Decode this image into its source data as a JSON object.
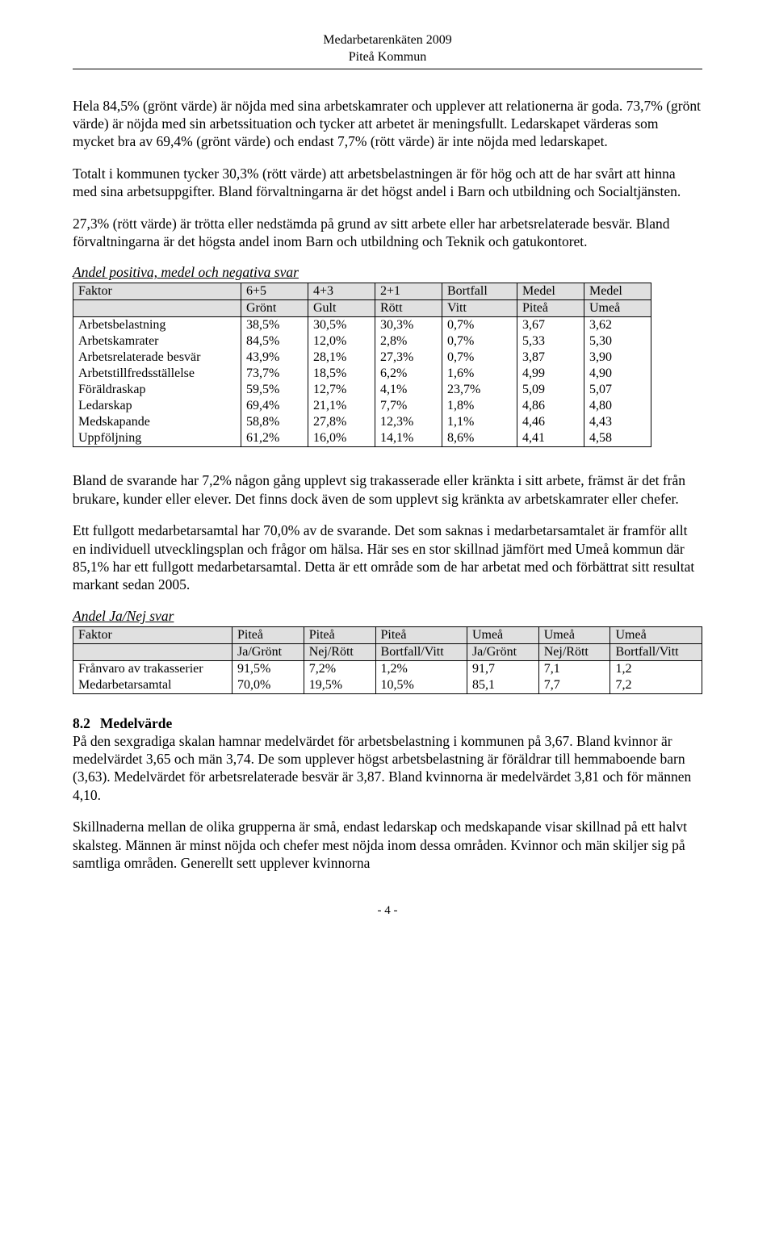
{
  "header": {
    "line1": "Medarbetarenkäten 2009",
    "line2": "Piteå Kommun"
  },
  "paragraphs": {
    "p1": "Hela 84,5% (grönt värde) är nöjda med sina arbetskamrater och upplever att relationerna är goda. 73,7% (grönt värde) är nöjda med sin arbetssituation och tycker att arbetet är meningsfullt. Ledarskapet värderas som mycket bra av 69,4% (grönt värde) och endast 7,7% (rött värde) är inte nöjda med ledarskapet.",
    "p2": "Totalt i kommunen tycker 30,3% (rött värde) att arbetsbelastningen är för hög och att de har svårt att hinna med sina arbetsuppgifter. Bland förvaltningarna är det högst andel i Barn och utbildning och Socialtjänsten.",
    "p3": "27,3% (rött värde) är trötta eller nedstämda på grund av sitt arbete eller har arbetsrelaterade besvär. Bland förvaltningarna är det högsta andel inom Barn och utbildning och Teknik och gatukontoret.",
    "p4": "Bland de svarande har 7,2% någon gång upplevt sig trakasserade eller kränkta i sitt arbete, främst är det från brukare, kunder eller elever. Det finns dock även de som upplevt sig kränkta av arbetskamrater eller chefer.",
    "p5": "Ett fullgott medarbetarsamtal har 70,0% av de svarande. Det som saknas i medarbetarsamtalet är framför allt en individuell utvecklingsplan och frågor om hälsa. Här ses en stor skillnad jämfört med Umeå kommun där 85,1% har ett fullgott medarbetarsamtal. Detta är ett område som de har arbetat med och förbättrat sitt resultat markant sedan 2005.",
    "p6": "På den sexgradiga skalan hamnar medelvärdet för arbetsbelastning i kommunen på 3,67. Bland kvinnor är medelvärdet 3,65 och män 3,74. De som upplever högst arbetsbelastning är föräldrar till hemmaboende barn (3,63). Medelvärdet för arbetsrelaterade besvär är 3,87. Bland kvinnorna är medelvärdet 3,81 och för männen 4,10.",
    "p7": "Skillnaderna mellan de olika grupperna är små, endast ledarskap och medskapande visar skillnad på ett halvt skalsteg. Männen är minst nöjda och chefer mest nöjda inom dessa områden. Kvinnor och män skiljer sig på samtliga områden. Generellt sett upplever kvinnorna"
  },
  "table1": {
    "caption": "Andel positiva, medel och negativa svar",
    "head1": [
      "Faktor",
      "6+5",
      "4+3",
      "2+1",
      "Bortfall",
      "Medel",
      "Medel"
    ],
    "head2": [
      "",
      "Grönt",
      "Gult",
      "Rött",
      "Vitt",
      "Piteå",
      "Umeå"
    ],
    "rows": [
      [
        "Arbetsbelastning",
        "38,5%",
        "30,5%",
        "30,3%",
        "0,7%",
        "3,67",
        "3,62"
      ],
      [
        "Arbetskamrater",
        "84,5%",
        "12,0%",
        "2,8%",
        "0,7%",
        "5,33",
        "5,30"
      ],
      [
        "Arbetsrelaterade besvär",
        "43,9%",
        "28,1%",
        "27,3%",
        "0,7%",
        "3,87",
        "3,90"
      ],
      [
        "Arbetstillfredsställelse",
        "73,7%",
        "18,5%",
        "6,2%",
        "1,6%",
        "4,99",
        "4,90"
      ],
      [
        "Föräldraskap",
        "59,5%",
        "12,7%",
        "4,1%",
        "23,7%",
        "5,09",
        "5,07"
      ],
      [
        "Ledarskap",
        "69,4%",
        "21,1%",
        "7,7%",
        "1,8%",
        "4,86",
        "4,80"
      ],
      [
        "Medskapande",
        "58,8%",
        "27,8%",
        "12,3%",
        "1,1%",
        "4,46",
        "4,43"
      ],
      [
        "Uppföljning",
        "61,2%",
        "16,0%",
        "14,1%",
        "8,6%",
        "4,41",
        "4,58"
      ]
    ],
    "header_bg": "#e0e0e0"
  },
  "table2": {
    "caption": "Andel Ja/Nej svar",
    "head1": [
      "Faktor",
      "Piteå",
      "Piteå",
      "Piteå",
      "Umeå",
      "Umeå",
      "Umeå"
    ],
    "head2": [
      "",
      "Ja/Grönt",
      "Nej/Rött",
      "Bortfall/Vitt",
      "Ja/Grönt",
      "Nej/Rött",
      "Bortfall/Vitt"
    ],
    "rows": [
      [
        "Frånvaro av trakasserier",
        "91,5%",
        "7,2%",
        "1,2%",
        "91,7",
        "7,1",
        "1,2"
      ],
      [
        "Medarbetarsamtal",
        "70,0%",
        "19,5%",
        "10,5%",
        "85,1",
        "7,7",
        "7,2"
      ]
    ],
    "header_bg": "#e0e0e0"
  },
  "section": {
    "num": "8.2",
    "title": "Medelvärde"
  },
  "footer": "- 4 -"
}
